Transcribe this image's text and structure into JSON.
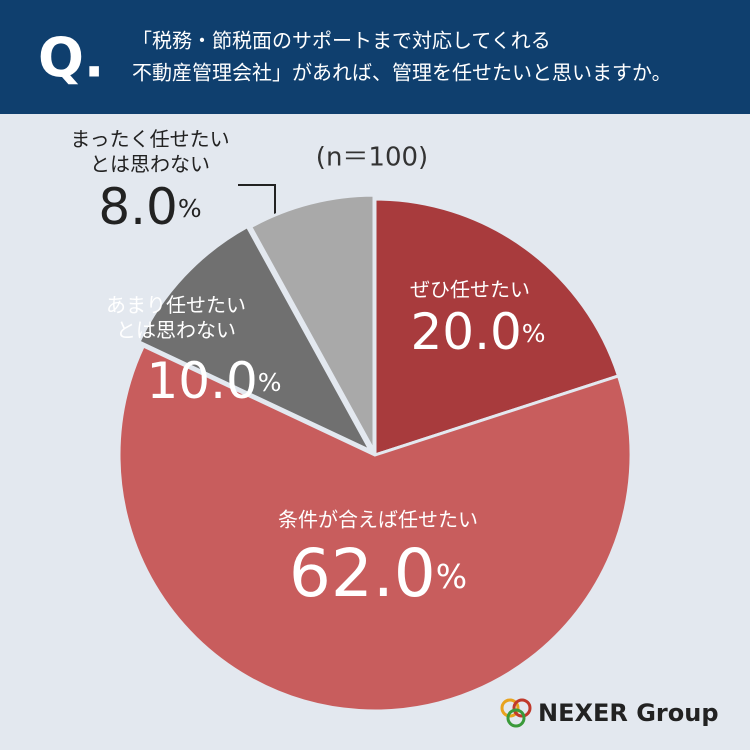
{
  "header": {
    "q": "Q.",
    "lines": [
      "「税務・節税面のサポートまで対応してくれる",
      "不動産管理会社」があれば、管理を任せたいと思いますか。"
    ]
  },
  "chart_data": {
    "type": "pie",
    "subtitle": "(n＝100)",
    "categories": [
      "ぜひ任せたい",
      "条件が合えば任せたい",
      "あまり任せたい\nとは思わない",
      "まったく任せたい\nとは思わない"
    ],
    "values": [
      20.0,
      62.0,
      10.0,
      8.0
    ],
    "value_labels": [
      "20.0",
      "62.0",
      "10.0",
      "8.0"
    ],
    "unit": "%",
    "colors": [
      "#a83b3d",
      "#c85d5d",
      "#707070",
      "#a9a9a9"
    ]
  },
  "footer": {
    "logo": "NEXER Group"
  }
}
